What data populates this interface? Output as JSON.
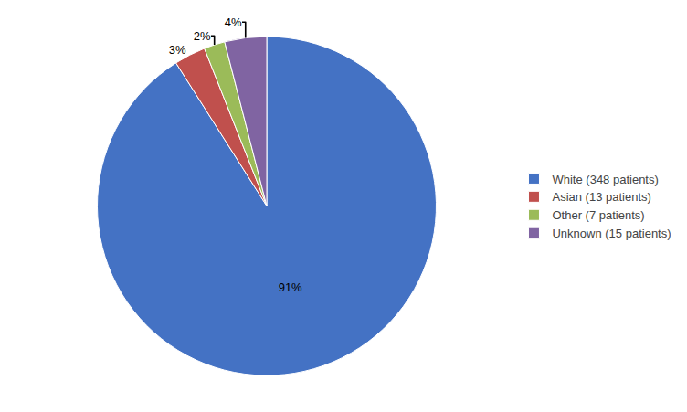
{
  "chart_data": {
    "type": "pie",
    "categories": [
      "White (348 patients)",
      "Asian (13 patients)",
      "Other (7 patients)",
      "Unknown (15 patients)"
    ],
    "values": [
      91,
      3,
      2,
      4
    ],
    "value_labels": [
      "91%",
      "3%",
      "2%",
      "4%"
    ],
    "colors": [
      "#4472C4",
      "#C0504D",
      "#9BBB59",
      "#8064A2"
    ],
    "data_labels": true,
    "legend": "right"
  }
}
